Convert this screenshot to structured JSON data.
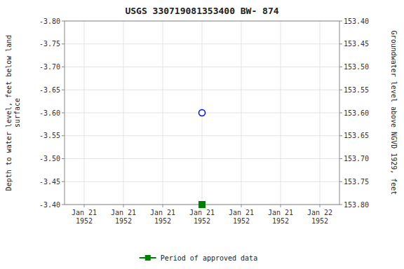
{
  "chart_data": {
    "type": "scatter",
    "title": "USGS 330719081353400 BW- 874",
    "categories": [
      "Jan 21\n1952",
      "Jan 21\n1952",
      "Jan 21\n1952",
      "Jan 21\n1952",
      "Jan 21\n1952",
      "Jan 21\n1952",
      "Jan 22\n1952"
    ],
    "y_label": "Depth to water level, feet below land\nsurface",
    "y2_label": "Groundwater level above NGVD 1929, feet",
    "series": [
      {
        "color": "#0000ff",
        "marker": "circle",
        "values": [
          null,
          null,
          null,
          -3.6,
          null,
          null,
          null
        ]
      },
      {
        "name": "Period of approved data",
        "color": "#008000",
        "marker": "square",
        "values": [
          null,
          null,
          null,
          -3.4,
          null,
          null,
          null
        ]
      }
    ],
    "ylim": [
      -3.4,
      -3.8
    ],
    "yticks": [
      {
        "value": -3.8,
        "label": "-3.80"
      },
      -3.75,
      {
        "value": -3.7,
        "label": "-3.70"
      },
      -3.65,
      {
        "value": -3.6,
        "label": "-3.60"
      },
      -3.55,
      {
        "value": -3.5,
        "label": "-3.50"
      },
      -3.45,
      {
        "value": -3.4,
        "label": "-3.40"
      }
    ],
    "y2lim": [
      153.8,
      153.4
    ],
    "y2ticks": [
      {
        "value": 153.4,
        "label": "153.40"
      },
      153.45,
      {
        "value": 153.5,
        "label": "153.50"
      },
      153.55,
      {
        "value": 153.6,
        "label": "153.60"
      },
      153.65,
      {
        "value": 153.7,
        "label": "153.70"
      },
      153.75,
      {
        "value": 153.8,
        "label": "153.80"
      }
    ],
    "grid": true,
    "legend": "bottom"
  }
}
